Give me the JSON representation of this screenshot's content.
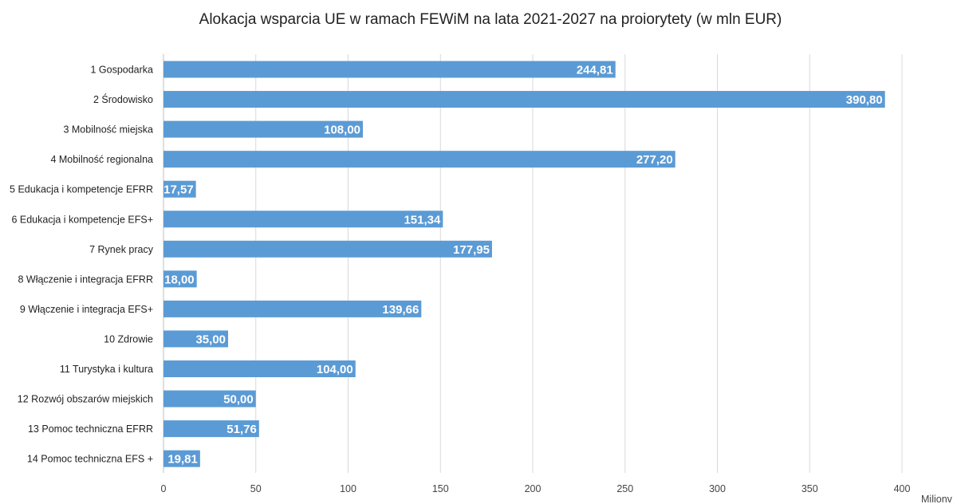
{
  "chart_data": {
    "type": "bar",
    "orientation": "horizontal",
    "title": "Alokacja wsparcia UE w ramach FEWiM na lata 2021-2027 na proiorytety (w mln EUR)",
    "categories": [
      "1 Gospodarka",
      "2 Środowisko",
      "3 Mobilność miejska",
      "4 Mobilność regionalna",
      "5 Edukacja i kompetencje EFRR",
      "6 Edukacja i kompetencje EFS+",
      "7 Rynek pracy",
      "8 Włączenie i integracja EFRR",
      "9 Włączenie i integracja EFS+",
      "10 Zdrowie",
      "11 Turystyka i kultura",
      "12 Rozwój obszarów miejskich",
      "13 Pomoc techniczna EFRR",
      "14 Pomoc techniczna EFS +"
    ],
    "values": [
      244.81,
      390.8,
      108.0,
      277.2,
      17.57,
      151.34,
      177.95,
      18.0,
      139.66,
      35.0,
      104.0,
      50.0,
      51.76,
      19.81
    ],
    "data_labels": [
      "244,81",
      "390,80",
      "108,00",
      "277,20",
      "17,57",
      "151,34",
      "177,95",
      "18,00",
      "139,66",
      "35,00",
      "104,00",
      "50,00",
      "51,76",
      "19,81"
    ],
    "xlim": [
      0,
      400
    ],
    "xticks": [
      0,
      50,
      100,
      150,
      200,
      250,
      300,
      350,
      400
    ],
    "xlabel": "Milionv",
    "grid": true,
    "bar_color": "#5b9bd5",
    "grid_color": "#d9d9d9"
  }
}
